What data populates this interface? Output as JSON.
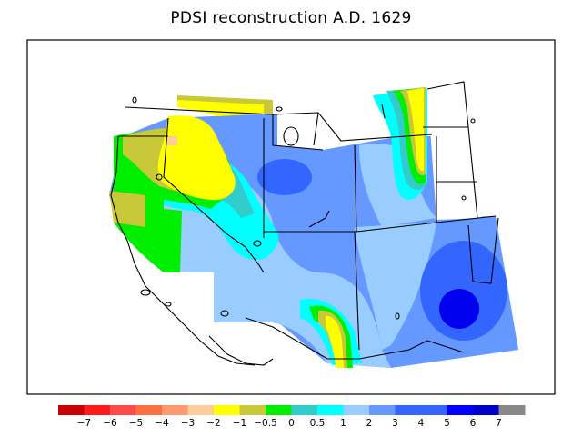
{
  "title": "PDSI reconstruction A.D. 1629",
  "legend": {
    "colors": [
      "#cc0000",
      "#ff1a1a",
      "#ff4a4a",
      "#ff7040",
      "#ff9a70",
      "#ffcc99",
      "#ffff00",
      "#c8c838",
      "#00ee00",
      "#33cccc",
      "#00ffff",
      "#99ccff",
      "#6699ff",
      "#3366ff",
      "#3366ff",
      "#0000ff",
      "#0000cc",
      "#888888"
    ],
    "labels": [
      "−7",
      "−6",
      "−5",
      "−4",
      "−3",
      "−2",
      "−1",
      "−0.5",
      "0",
      "0.5",
      "1",
      "2",
      "3",
      "4",
      "5",
      "6",
      "7"
    ]
  },
  "map_colors": {
    "yellow": "#ffff00",
    "olive": "#c8c838",
    "green": "#00ee00",
    "teal": "#33cccc",
    "cyan": "#00ffff",
    "light_blue": "#99ccff",
    "mid_blue": "#6699ff",
    "blue": "#3366ff",
    "deep_blue": "#0000ee",
    "peach": "#ffcc99"
  }
}
